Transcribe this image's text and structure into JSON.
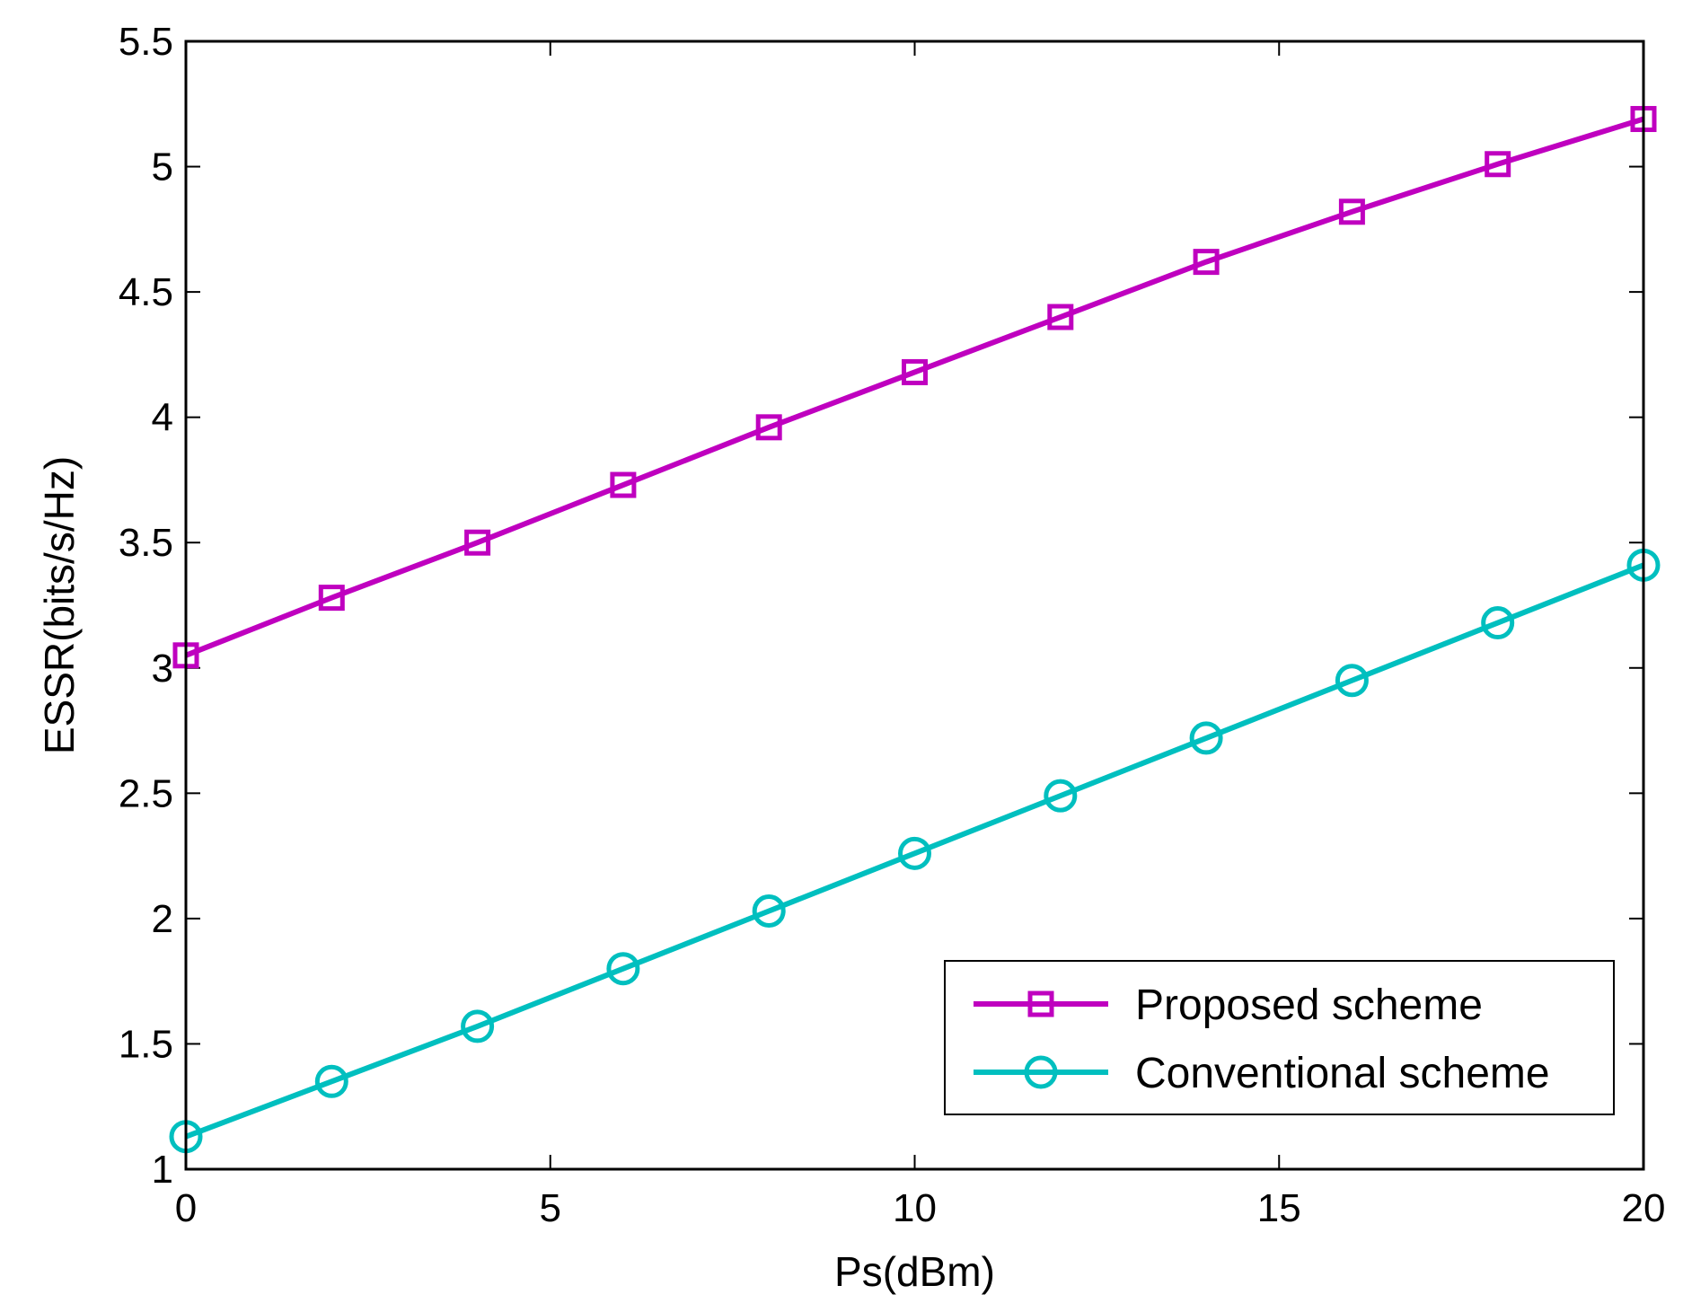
{
  "chart_data": {
    "type": "line",
    "title": "",
    "xlabel": "Ps(dBm)",
    "ylabel": "ESSR(bits/s/Hz)",
    "xlim": [
      0,
      20
    ],
    "ylim": [
      1,
      5.5
    ],
    "xticks": [
      0,
      5,
      10,
      15,
      20
    ],
    "yticks": [
      1,
      1.5,
      2,
      2.5,
      3,
      3.5,
      4,
      4.5,
      5,
      5.5
    ],
    "xtick_labels": [
      "0",
      "5",
      "10",
      "15",
      "20"
    ],
    "ytick_labels": [
      "1",
      "1.5",
      "2",
      "2.5",
      "3",
      "3.5",
      "4",
      "4.5",
      "5",
      "5.5"
    ],
    "grid": false,
    "legend_position": "bottom-right",
    "x": [
      0,
      2,
      4,
      6,
      8,
      10,
      12,
      14,
      16,
      18,
      20
    ],
    "series": [
      {
        "name": "Proposed scheme",
        "color": "#bf00bf",
        "marker": "square",
        "values": [
          3.05,
          3.28,
          3.5,
          3.73,
          3.96,
          4.18,
          4.4,
          4.62,
          4.82,
          5.01,
          5.19
        ]
      },
      {
        "name": "Conventional scheme",
        "color": "#00bfbf",
        "marker": "circle",
        "values": [
          1.13,
          1.35,
          1.57,
          1.8,
          2.03,
          2.26,
          2.49,
          2.72,
          2.95,
          3.18,
          3.41
        ]
      }
    ]
  }
}
